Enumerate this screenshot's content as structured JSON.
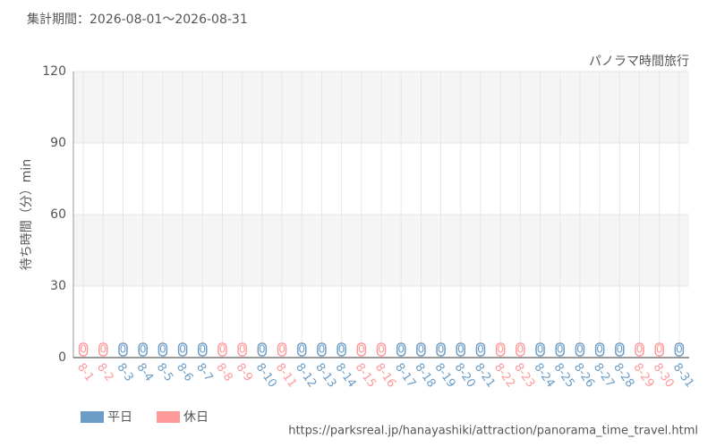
{
  "chart_data": {
    "type": "bar",
    "subtitle": "集計期間：2026-08-01〜2026-08-31",
    "title": "パノラマ時間旅行",
    "y_label": "待ち時間（分）min",
    "source": "https://parksreal.jp/hanayashiki/attraction/panorama_time_travel.html",
    "categories": [
      "8-1",
      "8-2",
      "8-3",
      "8-4",
      "8-5",
      "8-6",
      "8-7",
      "8-8",
      "8-9",
      "8-10",
      "8-11",
      "8-12",
      "8-13",
      "8-14",
      "8-15",
      "8-16",
      "8-17",
      "8-18",
      "8-19",
      "8-20",
      "8-21",
      "8-22",
      "8-23",
      "8-24",
      "8-25",
      "8-26",
      "8-27",
      "8-28",
      "8-29",
      "8-30",
      "8-31"
    ],
    "series": [
      {
        "name": "平日",
        "color": "#6b9dc7",
        "values": [
          null,
          null,
          0,
          0,
          0,
          0,
          0,
          null,
          null,
          0,
          null,
          0,
          0,
          0,
          null,
          null,
          0,
          0,
          0,
          0,
          0,
          null,
          null,
          0,
          0,
          0,
          0,
          0,
          null,
          null,
          0
        ]
      },
      {
        "name": "休日",
        "color": "#ff9a9a",
        "values": [
          0,
          0,
          null,
          null,
          null,
          null,
          null,
          0,
          0,
          null,
          0,
          null,
          null,
          null,
          0,
          0,
          null,
          null,
          null,
          null,
          null,
          0,
          0,
          null,
          null,
          null,
          null,
          null,
          0,
          0,
          null
        ]
      }
    ],
    "ylim": [
      0,
      120
    ],
    "yticks": [
      0,
      30,
      60,
      90,
      120
    ],
    "grid": true
  }
}
